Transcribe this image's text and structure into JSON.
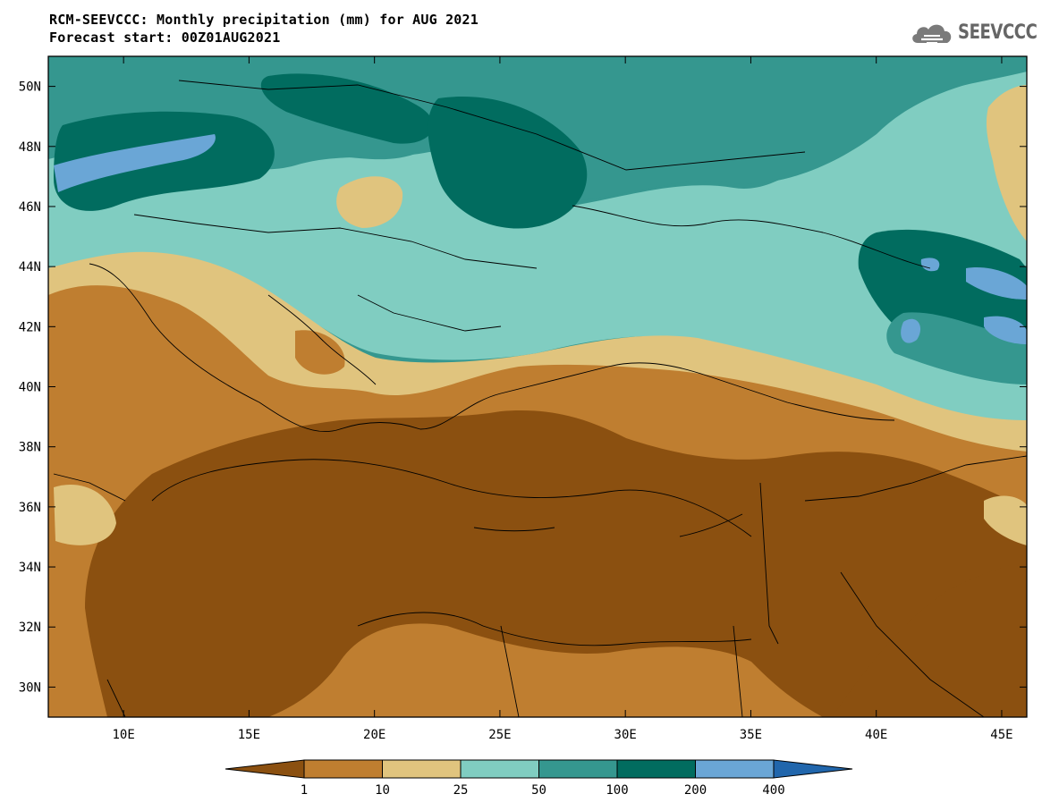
{
  "title": {
    "line1": "RCM-SEEVCCC: Monthly precipitation (mm) for AUG 2021",
    "line2": "Forecast start: 00Z01AUG2021"
  },
  "logo": {
    "text": "SEEVCCC",
    "icon": "cloud-icon"
  },
  "map": {
    "lon_range": [
      7,
      46
    ],
    "lat_range": [
      29,
      51
    ],
    "lat_ticks": [
      {
        "value": 50,
        "label": "50N"
      },
      {
        "value": 48,
        "label": "48N"
      },
      {
        "value": 46,
        "label": "46N"
      },
      {
        "value": 44,
        "label": "44N"
      },
      {
        "value": 42,
        "label": "42N"
      },
      {
        "value": 40,
        "label": "40N"
      },
      {
        "value": 38,
        "label": "38N"
      },
      {
        "value": 36,
        "label": "36N"
      },
      {
        "value": 34,
        "label": "34N"
      },
      {
        "value": 32,
        "label": "32N"
      },
      {
        "value": 30,
        "label": "30N"
      }
    ],
    "lon_ticks": [
      {
        "value": 10,
        "label": "10E"
      },
      {
        "value": 15,
        "label": "15E"
      },
      {
        "value": 20,
        "label": "20E"
      },
      {
        "value": 25,
        "label": "25E"
      },
      {
        "value": 30,
        "label": "30E"
      },
      {
        "value": 35,
        "label": "35E"
      },
      {
        "value": 40,
        "label": "40E"
      },
      {
        "value": 45,
        "label": "45E"
      }
    ]
  },
  "colorbar": {
    "labels": [
      "1",
      "10",
      "25",
      "50",
      "100",
      "200",
      "400"
    ],
    "colors": [
      "#8B5010",
      "#BF7E30",
      "#E0C47E",
      "#80CDC1",
      "#35978F",
      "#016C5F",
      "#6AA6D6",
      "#2166AC"
    ]
  }
}
